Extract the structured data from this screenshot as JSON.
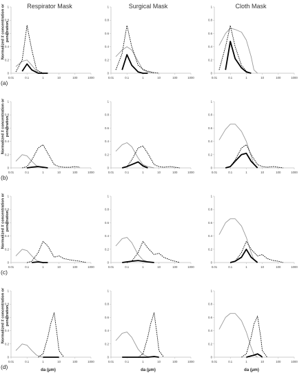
{
  "figure": {
    "column_titles": [
      "Respirator Mask",
      "Surgical Mask",
      "Cloth Mask"
    ],
    "row_labels": [
      "(a)",
      "(b)",
      "(c)",
      "(d)"
    ],
    "y_axis_label_line1": "Normalized # concentration or",
    "y_axis_label_line2": "penetration",
    "x_axis_label": "da (μm)",
    "x_ticks": [
      "0.01",
      "0.1",
      "1",
      "10",
      "100",
      "1000"
    ],
    "y_ticks": [
      "0",
      "0.2",
      "0.4",
      "0.6",
      "0.8",
      "1"
    ],
    "colors": {
      "axis": "#bbbbbb",
      "gray_line": "#999999",
      "black_line": "#000000"
    }
  },
  "chart_data": [
    {
      "type": "line",
      "row": "(a)",
      "column": "Respirator Mask",
      "x_scale": "log",
      "xlim": [
        0.01,
        1000
      ],
      "ylim": [
        0,
        1
      ],
      "series": [
        {
          "style": "gray",
          "x": [
            0.02,
            0.05,
            0.1,
            0.2,
            0.4,
            1
          ],
          "y": [
            0.1,
            0.18,
            0.2,
            0.12,
            0.03,
            0.0
          ]
        },
        {
          "style": "dotted",
          "x": [
            0.02,
            0.05,
            0.1,
            0.2,
            0.4,
            1,
            2
          ],
          "y": [
            0.02,
            0.2,
            0.72,
            0.35,
            0.05,
            0.0,
            0.0
          ]
        },
        {
          "style": "black",
          "x": [
            0.05,
            0.1,
            0.2,
            0.5,
            1,
            2
          ],
          "y": [
            0.03,
            0.14,
            0.05,
            0.0,
            0.0,
            0.0
          ]
        }
      ]
    },
    {
      "type": "line",
      "row": "(a)",
      "column": "Surgical Mask",
      "x_scale": "log",
      "xlim": [
        0.01,
        1000
      ],
      "ylim": [
        0,
        1
      ],
      "series": [
        {
          "style": "gray",
          "x": [
            0.02,
            0.05,
            0.1,
            0.2,
            0.5,
            1,
            2,
            5
          ],
          "y": [
            0.25,
            0.35,
            0.4,
            0.35,
            0.18,
            0.05,
            0.02,
            0.0
          ]
        },
        {
          "style": "dotted",
          "x": [
            0.02,
            0.05,
            0.1,
            0.2,
            0.5,
            1,
            2,
            5,
            10
          ],
          "y": [
            0.05,
            0.3,
            0.72,
            0.4,
            0.12,
            0.06,
            0.03,
            0.01,
            0.0
          ]
        },
        {
          "style": "black",
          "x": [
            0.05,
            0.1,
            0.2,
            0.5,
            1,
            2
          ],
          "y": [
            0.05,
            0.28,
            0.12,
            0.02,
            0.0,
            0.0
          ]
        }
      ]
    },
    {
      "type": "line",
      "row": "(a)",
      "column": "Cloth Mask",
      "x_scale": "log",
      "xlim": [
        0.01,
        1000
      ],
      "ylim": [
        0,
        1
      ],
      "series": [
        {
          "style": "gray",
          "x": [
            0.02,
            0.05,
            0.1,
            0.2,
            0.5,
            1,
            2,
            3,
            5
          ],
          "y": [
            0.42,
            0.6,
            0.68,
            0.66,
            0.62,
            0.5,
            0.25,
            0.05,
            0.0
          ]
        },
        {
          "style": "dotted",
          "x": [
            0.02,
            0.05,
            0.1,
            0.2,
            0.5,
            1,
            2
          ],
          "y": [
            0.05,
            0.4,
            0.72,
            0.4,
            0.12,
            0.03,
            0.0
          ]
        },
        {
          "style": "black",
          "x": [
            0.05,
            0.1,
            0.2,
            0.5,
            1,
            2
          ],
          "y": [
            0.05,
            0.48,
            0.22,
            0.08,
            0.02,
            0.0
          ]
        }
      ]
    },
    {
      "type": "line",
      "row": "(b)",
      "column": "Respirator Mask",
      "x_scale": "log",
      "xlim": [
        0.01,
        1000
      ],
      "ylim": [
        0,
        1
      ],
      "series": [
        {
          "style": "gray",
          "x": [
            0.02,
            0.05,
            0.1,
            0.2,
            0.4,
            1
          ],
          "y": [
            0.1,
            0.2,
            0.18,
            0.1,
            0.03,
            0.0
          ]
        },
        {
          "style": "dotted",
          "x": [
            0.05,
            0.1,
            0.2,
            0.5,
            1,
            2,
            5,
            10,
            20,
            50,
            100,
            200
          ],
          "y": [
            0.0,
            0.02,
            0.12,
            0.3,
            0.35,
            0.22,
            0.05,
            0.02,
            0.01,
            0.01,
            0.02,
            0.01
          ]
        },
        {
          "style": "black",
          "x": [
            0.1,
            0.2,
            0.5,
            1,
            2
          ],
          "y": [
            0.0,
            0.01,
            0.02,
            0.01,
            0.0
          ]
        }
      ]
    },
    {
      "type": "line",
      "row": "(b)",
      "column": "Surgical Mask",
      "x_scale": "log",
      "xlim": [
        0.01,
        1000
      ],
      "ylim": [
        0,
        1
      ],
      "series": [
        {
          "style": "gray",
          "x": [
            0.02,
            0.05,
            0.1,
            0.2,
            0.5,
            1,
            2,
            5
          ],
          "y": [
            0.25,
            0.35,
            0.38,
            0.32,
            0.15,
            0.05,
            0.02,
            0.0
          ]
        },
        {
          "style": "dotted",
          "x": [
            0.05,
            0.1,
            0.2,
            0.5,
            1,
            2,
            5,
            10,
            20,
            50,
            100,
            200
          ],
          "y": [
            0.0,
            0.02,
            0.12,
            0.3,
            0.33,
            0.22,
            0.05,
            0.02,
            0.01,
            0.02,
            0.01,
            0.0
          ]
        },
        {
          "style": "black",
          "x": [
            0.05,
            0.1,
            0.2,
            0.5,
            1,
            2
          ],
          "y": [
            0.0,
            0.02,
            0.05,
            0.09,
            0.03,
            0.0
          ]
        }
      ]
    },
    {
      "type": "line",
      "row": "(b)",
      "column": "Cloth Mask",
      "x_scale": "log",
      "xlim": [
        0.01,
        1000
      ],
      "ylim": [
        0,
        1
      ],
      "series": [
        {
          "style": "gray",
          "x": [
            0.02,
            0.05,
            0.1,
            0.2,
            0.5,
            1,
            2,
            3,
            5
          ],
          "y": [
            0.42,
            0.58,
            0.66,
            0.66,
            0.55,
            0.4,
            0.18,
            0.05,
            0.0
          ]
        },
        {
          "style": "dotted",
          "x": [
            0.05,
            0.1,
            0.2,
            0.5,
            1,
            2,
            5,
            10,
            20,
            50,
            100,
            200
          ],
          "y": [
            0.0,
            0.02,
            0.12,
            0.3,
            0.35,
            0.2,
            0.05,
            0.02,
            0.01,
            0.02,
            0.01,
            0.0
          ]
        },
        {
          "style": "black",
          "x": [
            0.05,
            0.1,
            0.2,
            0.5,
            1,
            2,
            5
          ],
          "y": [
            0.0,
            0.02,
            0.1,
            0.2,
            0.22,
            0.1,
            0.0
          ]
        }
      ]
    },
    {
      "type": "line",
      "row": "(c)",
      "column": "Respirator Mask",
      "x_scale": "log",
      "xlim": [
        0.01,
        1000
      ],
      "ylim": [
        0,
        1
      ],
      "series": [
        {
          "style": "gray",
          "x": [
            0.02,
            0.05,
            0.1,
            0.2,
            0.4,
            1
          ],
          "y": [
            0.1,
            0.2,
            0.18,
            0.1,
            0.03,
            0.0
          ]
        },
        {
          "style": "dotted",
          "x": [
            0.1,
            0.2,
            0.5,
            1,
            2,
            5,
            10,
            20,
            50,
            100,
            200,
            500
          ],
          "y": [
            0.0,
            0.02,
            0.15,
            0.32,
            0.25,
            0.08,
            0.1,
            0.06,
            0.04,
            0.03,
            0.02,
            0.0
          ]
        },
        {
          "style": "black",
          "x": [
            0.2,
            0.5,
            1,
            2
          ],
          "y": [
            0.0,
            0.01,
            0.0,
            0.0
          ]
        }
      ]
    },
    {
      "type": "line",
      "row": "(c)",
      "column": "Surgical Mask",
      "x_scale": "log",
      "xlim": [
        0.01,
        1000
      ],
      "ylim": [
        0,
        1
      ],
      "series": [
        {
          "style": "gray",
          "x": [
            0.02,
            0.05,
            0.1,
            0.2,
            0.5,
            1,
            2,
            5
          ],
          "y": [
            0.25,
            0.36,
            0.38,
            0.3,
            0.12,
            0.04,
            0.01,
            0.0
          ]
        },
        {
          "style": "dotted",
          "x": [
            0.1,
            0.2,
            0.5,
            1,
            2,
            5,
            10,
            20,
            50,
            100,
            200
          ],
          "y": [
            0.0,
            0.02,
            0.15,
            0.32,
            0.22,
            0.12,
            0.14,
            0.08,
            0.04,
            0.02,
            0.0
          ]
        },
        {
          "style": "black",
          "x": [
            0.05,
            0.1,
            0.2,
            0.5,
            1,
            2,
            5
          ],
          "y": [
            0.0,
            0.01,
            0.02,
            0.03,
            0.02,
            0.01,
            0.0
          ]
        }
      ]
    },
    {
      "type": "line",
      "row": "(c)",
      "column": "Cloth Mask",
      "x_scale": "log",
      "xlim": [
        0.01,
        1000
      ],
      "ylim": [
        0,
        1
      ],
      "series": [
        {
          "style": "gray",
          "x": [
            0.02,
            0.05,
            0.1,
            0.2,
            0.5,
            1,
            2,
            3,
            5
          ],
          "y": [
            0.42,
            0.6,
            0.66,
            0.66,
            0.55,
            0.38,
            0.15,
            0.04,
            0.0
          ]
        },
        {
          "style": "dotted",
          "x": [
            0.1,
            0.2,
            0.5,
            1,
            2,
            5,
            10,
            20,
            50,
            100,
            200
          ],
          "y": [
            0.0,
            0.02,
            0.15,
            0.32,
            0.2,
            0.1,
            0.12,
            0.06,
            0.03,
            0.02,
            0.0
          ]
        },
        {
          "style": "black",
          "x": [
            0.1,
            0.2,
            0.5,
            1,
            2,
            5
          ],
          "y": [
            0.0,
            0.02,
            0.08,
            0.2,
            0.08,
            0.0
          ]
        }
      ]
    },
    {
      "type": "line",
      "row": "(d)",
      "column": "Respirator Mask",
      "x_scale": "log",
      "xlim": [
        0.01,
        1000
      ],
      "ylim": [
        0,
        1
      ],
      "series": [
        {
          "style": "gray",
          "x": [
            0.02,
            0.05,
            0.1,
            0.2,
            0.4,
            1
          ],
          "y": [
            0.1,
            0.2,
            0.18,
            0.1,
            0.03,
            0.0
          ]
        },
        {
          "style": "dotted",
          "x": [
            0.5,
            1,
            2,
            3,
            5,
            8,
            10,
            20
          ],
          "y": [
            0.0,
            0.05,
            0.3,
            0.5,
            0.67,
            0.3,
            0.1,
            0.0
          ]
        },
        {
          "style": "black",
          "x": [
            1,
            2,
            5,
            10
          ],
          "y": [
            0.0,
            0.0,
            0.0,
            0.0
          ]
        }
      ]
    },
    {
      "type": "line",
      "row": "(d)",
      "column": "Surgical Mask",
      "x_scale": "log",
      "xlim": [
        0.01,
        1000
      ],
      "ylim": [
        0,
        1
      ],
      "series": [
        {
          "style": "gray",
          "x": [
            0.02,
            0.05,
            0.1,
            0.2,
            0.5,
            1,
            2,
            5
          ],
          "y": [
            0.25,
            0.36,
            0.38,
            0.3,
            0.12,
            0.04,
            0.01,
            0.0
          ]
        },
        {
          "style": "dotted",
          "x": [
            0.5,
            1,
            2,
            3,
            5,
            8,
            10,
            20
          ],
          "y": [
            0.0,
            0.05,
            0.3,
            0.5,
            0.67,
            0.3,
            0.1,
            0.0
          ]
        },
        {
          "style": "black",
          "x": [
            0.05,
            0.1,
            0.5,
            1,
            2,
            5,
            10
          ],
          "y": [
            0.0,
            0.0,
            0.0,
            0.0,
            0.0,
            0.01,
            0.0
          ]
        }
      ]
    },
    {
      "type": "line",
      "row": "(d)",
      "column": "Cloth Mask",
      "x_scale": "log",
      "xlim": [
        0.01,
        1000
      ],
      "ylim": [
        0,
        1
      ],
      "series": [
        {
          "style": "gray",
          "x": [
            0.02,
            0.05,
            0.1,
            0.2,
            0.5,
            1,
            2,
            3,
            5
          ],
          "y": [
            0.42,
            0.6,
            0.66,
            0.66,
            0.55,
            0.38,
            0.15,
            0.04,
            0.0
          ]
        },
        {
          "style": "dotted",
          "x": [
            0.5,
            1,
            2,
            3,
            5,
            8,
            10,
            20
          ],
          "y": [
            0.0,
            0.05,
            0.3,
            0.5,
            0.62,
            0.3,
            0.1,
            0.0
          ]
        },
        {
          "style": "black",
          "x": [
            1,
            2,
            3,
            5,
            8,
            10
          ],
          "y": [
            0.0,
            0.02,
            0.03,
            0.05,
            0.02,
            0.0
          ]
        }
      ]
    }
  ]
}
